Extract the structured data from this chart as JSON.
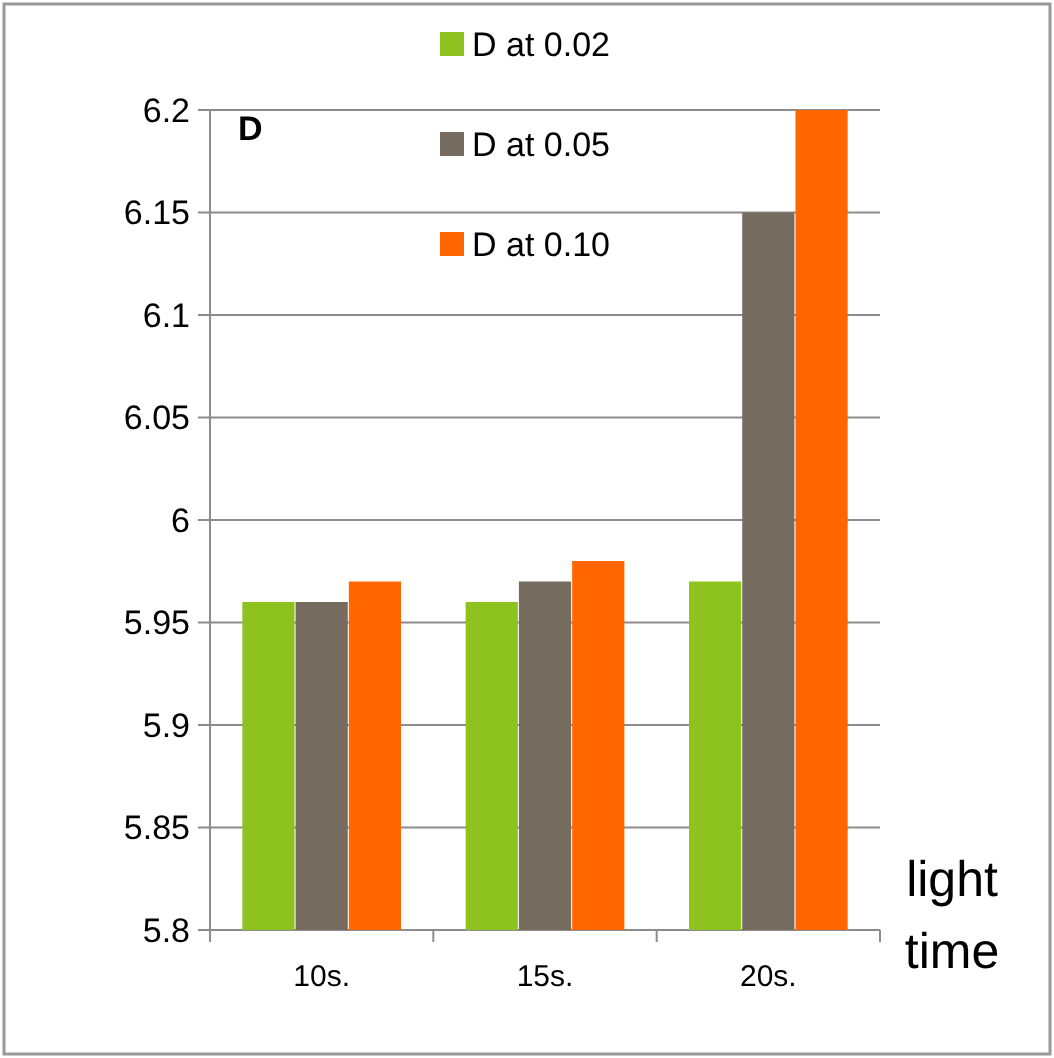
{
  "chart_data": {
    "type": "bar",
    "title": "D",
    "xlabel": "light time",
    "categories": [
      "10s.",
      "15s.",
      "20s."
    ],
    "series": [
      {
        "name": "D at 0.02",
        "color": "#8dc21f",
        "values": [
          5.96,
          5.96,
          5.97
        ]
      },
      {
        "name": "D at 0.05",
        "color": "#766b5f",
        "values": [
          5.96,
          5.97,
          6.15
        ]
      },
      {
        "name": "D at 0.10",
        "color": "#ff6600",
        "values": [
          5.97,
          5.98,
          6.2
        ]
      }
    ],
    "ylim": [
      5.8,
      6.2
    ],
    "yticks": [
      5.8,
      5.85,
      5.9,
      5.95,
      6,
      6.05,
      6.1,
      6.15,
      6.2
    ],
    "grid": "y",
    "legend": "top"
  }
}
